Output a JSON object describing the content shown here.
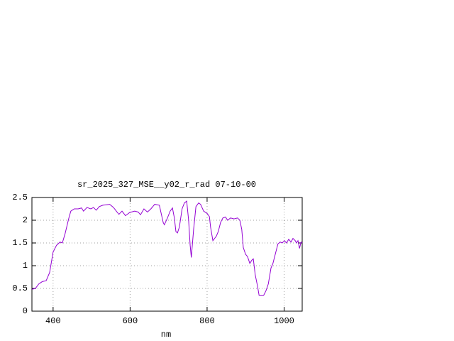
{
  "chart_data": {
    "type": "line",
    "title": "sr_2025_327_MSE__y02_r_rad 07-10-00",
    "x_label": "nm",
    "x": [
      345,
      354,
      363,
      372,
      382,
      391,
      400,
      409,
      418,
      424,
      431,
      441,
      446,
      455,
      465,
      474,
      479,
      488,
      498,
      505,
      512,
      520,
      529,
      547,
      557,
      566,
      571,
      579,
      588,
      599,
      612,
      621,
      627,
      636,
      645,
      654,
      664,
      676,
      686,
      689,
      697,
      704,
      710,
      715,
      719,
      723,
      728,
      735,
      741,
      747,
      752,
      756,
      759,
      765,
      771,
      778,
      783,
      791,
      800,
      806,
      809,
      815,
      824,
      829,
      835,
      841,
      848,
      853,
      861,
      870,
      879,
      885,
      890,
      894,
      900,
      905,
      911,
      916,
      920,
      925,
      931,
      935,
      947,
      953,
      959,
      966,
      971,
      977,
      984,
      990,
      995,
      1001,
      1006,
      1012,
      1018,
      1023,
      1029,
      1032,
      1036,
      1040,
      1044,
      1047
    ],
    "series": [
      {
        "color": "#9400d3",
        "values": [
          0.48,
          0.5,
          0.6,
          0.65,
          0.67,
          0.85,
          1.3,
          1.45,
          1.52,
          1.5,
          1.7,
          2.05,
          2.2,
          2.25,
          2.25,
          2.27,
          2.2,
          2.28,
          2.25,
          2.28,
          2.22,
          2.3,
          2.33,
          2.35,
          2.28,
          2.18,
          2.13,
          2.2,
          2.1,
          2.17,
          2.2,
          2.18,
          2.12,
          2.25,
          2.18,
          2.25,
          2.35,
          2.33,
          1.95,
          1.9,
          2.05,
          2.2,
          2.27,
          2.05,
          1.75,
          1.72,
          1.85,
          2.25,
          2.38,
          2.42,
          2.0,
          1.45,
          1.18,
          1.8,
          2.3,
          2.38,
          2.35,
          2.2,
          2.15,
          2.08,
          1.85,
          1.55,
          1.65,
          1.75,
          1.95,
          2.05,
          2.07,
          2.0,
          2.05,
          2.03,
          2.05,
          2.0,
          1.8,
          1.4,
          1.25,
          1.2,
          1.05,
          1.12,
          1.15,
          0.8,
          0.55,
          0.35,
          0.35,
          0.45,
          0.6,
          0.95,
          1.05,
          1.25,
          1.48,
          1.52,
          1.5,
          1.55,
          1.5,
          1.58,
          1.52,
          1.6,
          1.55,
          1.5,
          1.55,
          1.38,
          1.52,
          1.5
        ]
      }
    ],
    "xlim": [
      345,
      1047
    ],
    "xticks": [
      400,
      600,
      800,
      1000
    ],
    "ylim": [
      0,
      2.5
    ],
    "yticks": [
      0,
      0.5,
      1,
      1.5,
      2,
      2.5
    ],
    "grid": true
  }
}
